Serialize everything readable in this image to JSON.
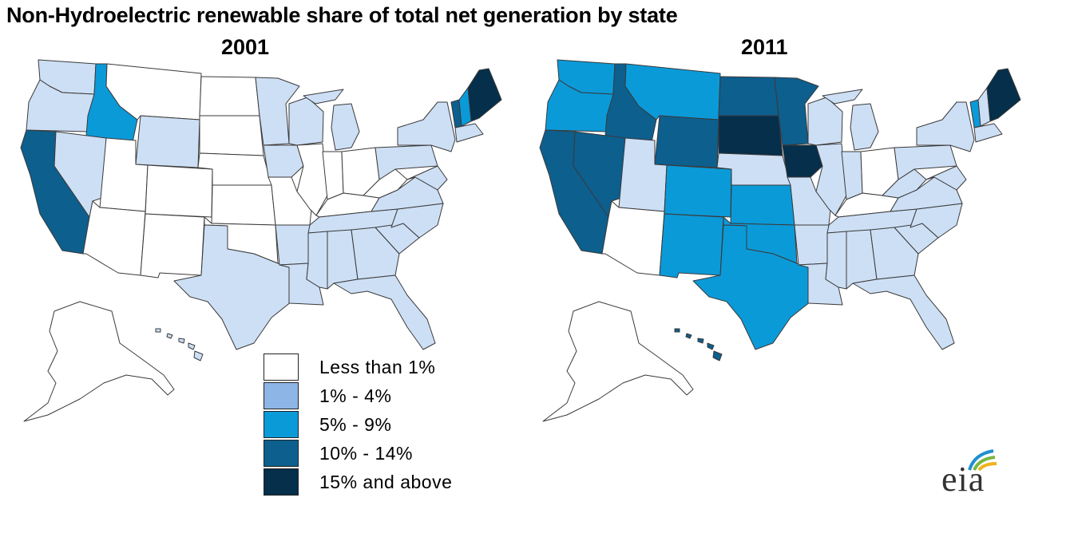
{
  "title": "Non-Hydroelectric renewable share of total net generation by state",
  "maps": [
    {
      "year": "2001"
    },
    {
      "year": "2011"
    }
  ],
  "colors": {
    "less_than_1": "#ffffff",
    "1_4": "#cddff5",
    "5_9": "#0b9ad8",
    "10_14": "#0d5f8e",
    "15_plus": "#052f4b",
    "outline": "#3a3a3a",
    "legend_1_4": "#8db5e6"
  },
  "legend": [
    {
      "label": "Less than 1%",
      "color_key": "less_than_1"
    },
    {
      "label": "1% - 4%",
      "color_key": "legend_1_4"
    },
    {
      "label": "5% - 9%",
      "color_key": "5_9"
    },
    {
      "label": "10% - 14%",
      "color_key": "10_14"
    },
    {
      "label": "15% and above",
      "color_key": "15_plus"
    }
  ],
  "logo": {
    "text": "eia"
  }
}
